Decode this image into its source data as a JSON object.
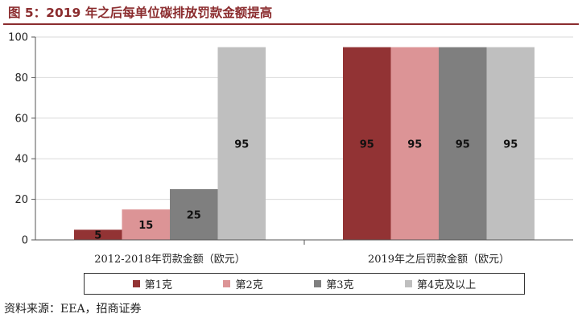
{
  "header": {
    "title": "图 5：2019 年之后每单位碳排放罚款金额提高"
  },
  "source": "资料来源：EEA，招商证券",
  "colors": {
    "title": "#8B2C2E",
    "axis": "#555555",
    "grid": "#d9d9d9",
    "label": "#222222"
  },
  "chart_data": {
    "type": "bar",
    "categories": [
      "2012-2018年罚款金额（欧元）",
      "2019年之后罚款金额（欧元）"
    ],
    "series": [
      {
        "name": "第1克",
        "color": "#923334",
        "values": [
          5,
          95
        ]
      },
      {
        "name": "第2克",
        "color": "#DC9496",
        "values": [
          15,
          95
        ]
      },
      {
        "name": "第3克",
        "color": "#7F7F7F",
        "values": [
          25,
          95
        ]
      },
      {
        "name": "第4克及以上",
        "color": "#BFBFBF",
        "values": [
          95,
          95
        ]
      }
    ],
    "ylim": [
      0,
      100
    ],
    "yticks": [
      0,
      20,
      40,
      60,
      80,
      100
    ],
    "grid": true,
    "data_labels": true,
    "legend_position": "bottom"
  }
}
